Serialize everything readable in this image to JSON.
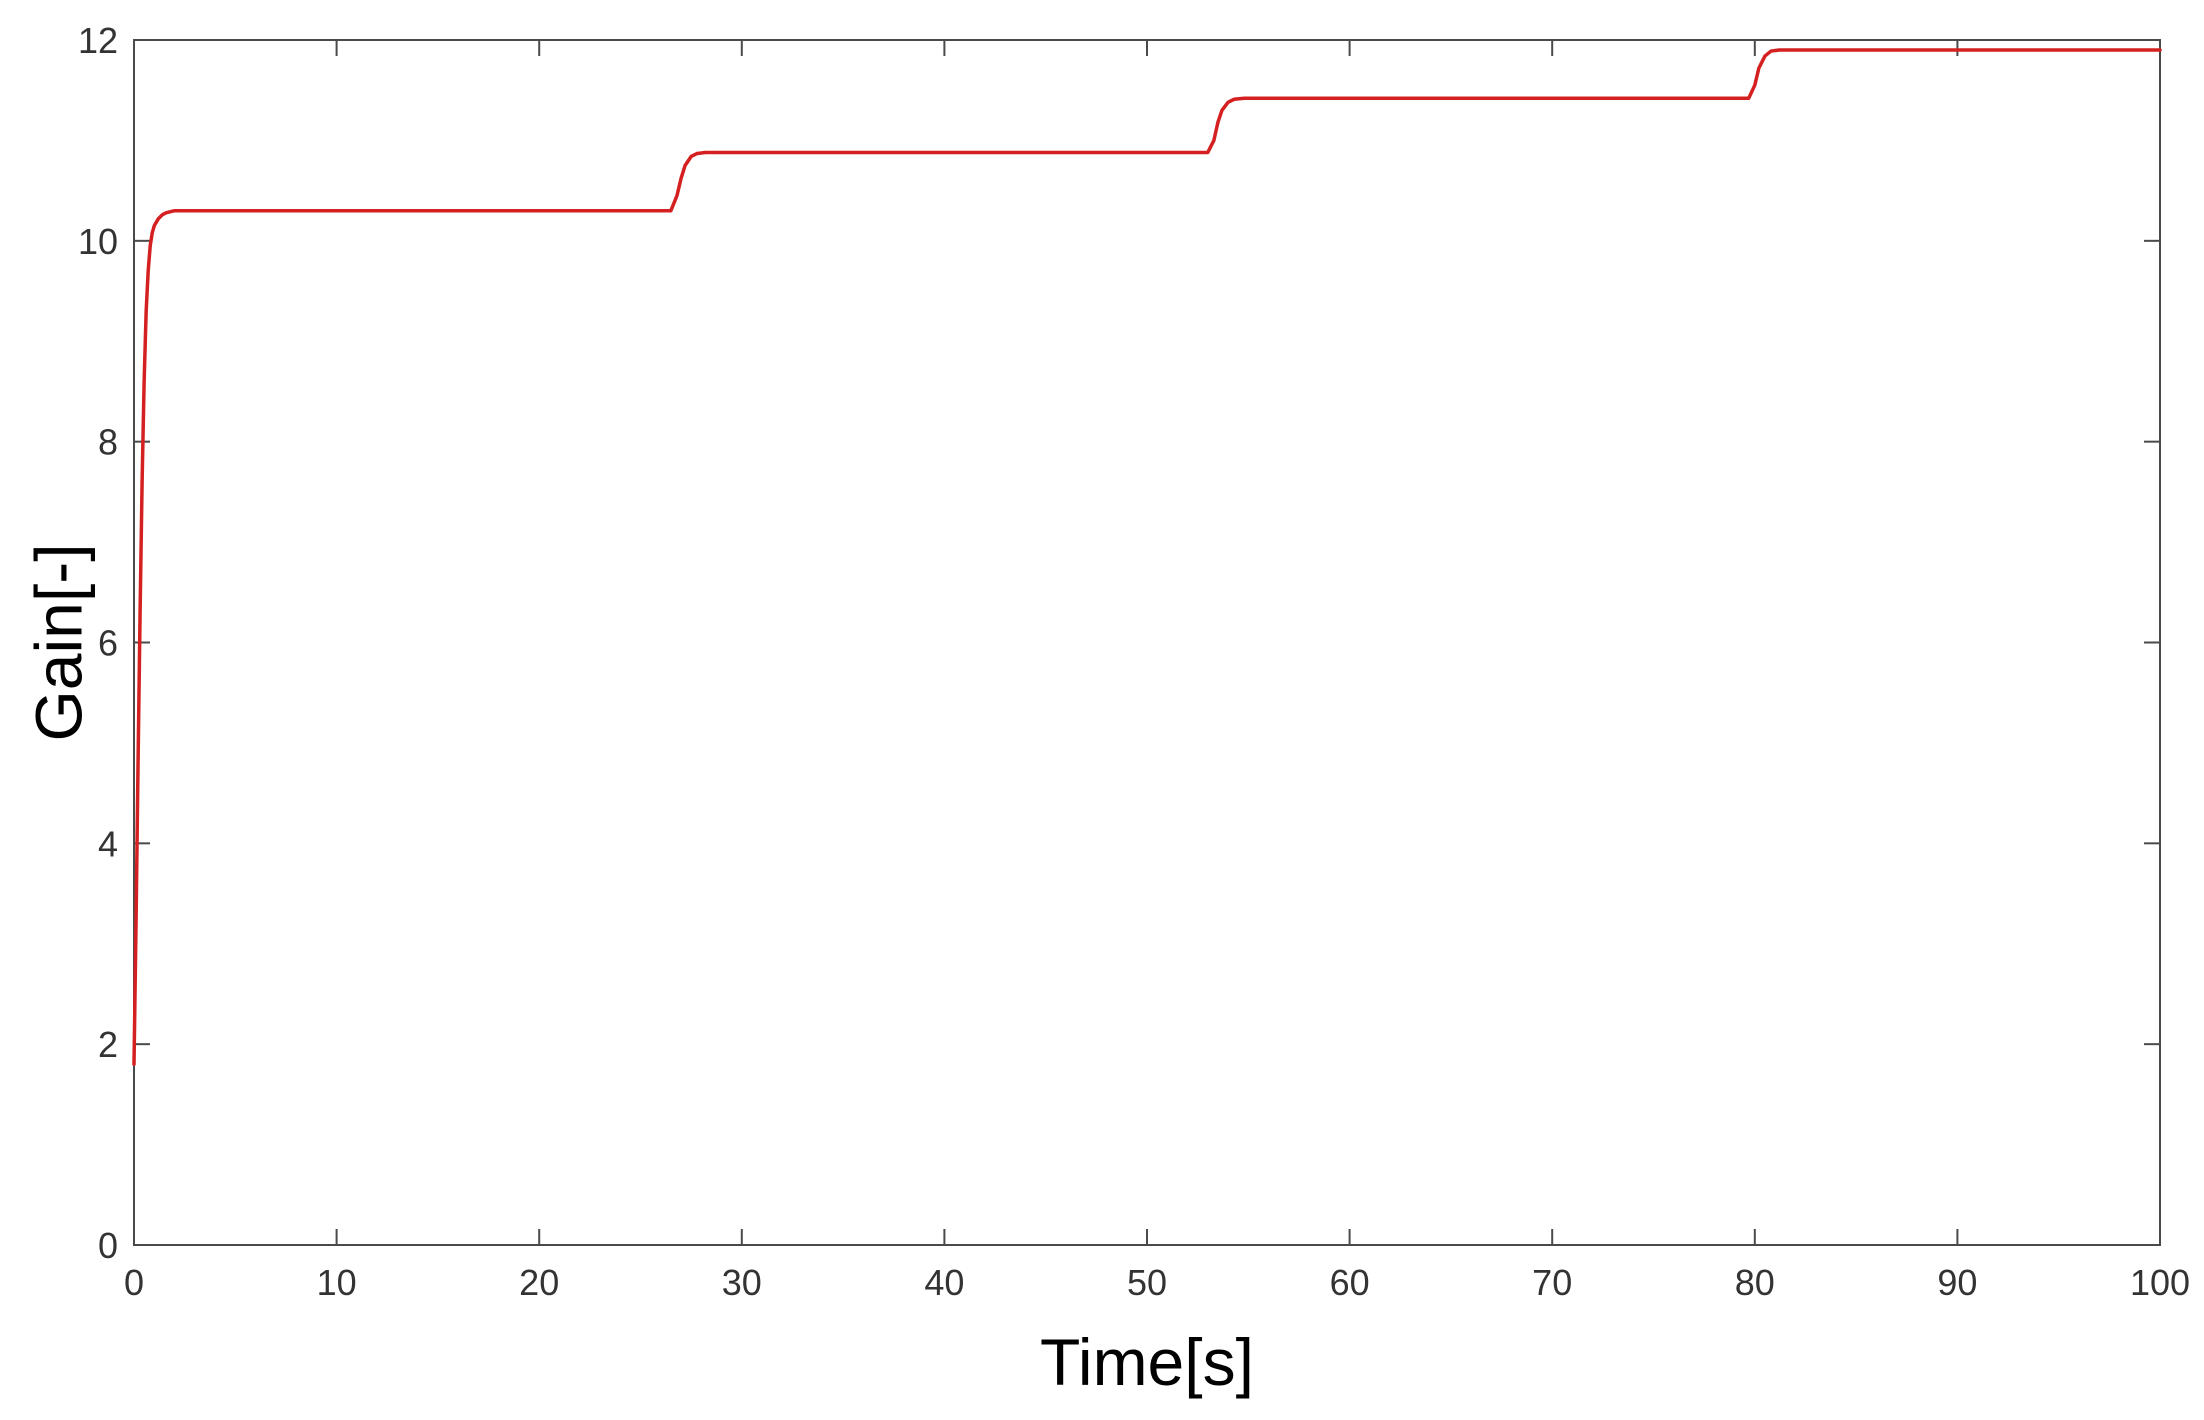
{
  "chart_data": {
    "type": "line",
    "title": "",
    "xlabel": "Time[s]",
    "ylabel": "Gain[-]",
    "xlim": [
      0,
      100
    ],
    "ylim": [
      0,
      12
    ],
    "xticks": [
      0,
      10,
      20,
      30,
      40,
      50,
      60,
      70,
      80,
      90,
      100
    ],
    "yticks": [
      0,
      2,
      4,
      6,
      8,
      10,
      12
    ],
    "grid": false,
    "legend": "none",
    "series": [
      {
        "color": "#d42020",
        "x": [
          0,
          0.1,
          0.2,
          0.3,
          0.4,
          0.5,
          0.6,
          0.7,
          0.8,
          0.9,
          1.0,
          1.2,
          1.4,
          1.6,
          1.8,
          2.0,
          2.5,
          26.5,
          26.8,
          27.0,
          27.2,
          27.5,
          27.8,
          28.2,
          53.0,
          53.3,
          53.5,
          53.7,
          54.0,
          54.3,
          54.8,
          79.7,
          80.0,
          80.2,
          80.5,
          80.8,
          81.2,
          100
        ],
        "y": [
          1.8,
          3.2,
          4.8,
          6.3,
          7.6,
          8.6,
          9.3,
          9.7,
          9.95,
          10.08,
          10.15,
          10.22,
          10.26,
          10.28,
          10.29,
          10.3,
          10.3,
          10.3,
          10.45,
          10.62,
          10.75,
          10.84,
          10.87,
          10.88,
          10.88,
          11.0,
          11.18,
          11.3,
          11.38,
          11.41,
          11.42,
          11.42,
          11.55,
          11.72,
          11.84,
          11.89,
          11.9,
          11.9
        ]
      }
    ]
  }
}
